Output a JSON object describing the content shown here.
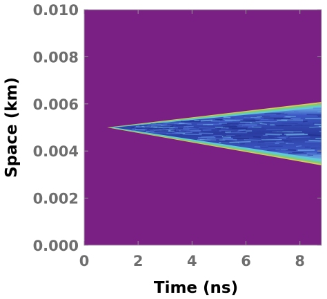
{
  "chart_data": {
    "type": "heatmap",
    "title": "",
    "xlabel": "Time (ns)",
    "ylabel": "Space (km)",
    "xlim": [
      0,
      8.8
    ],
    "ylim": [
      0,
      0.01
    ],
    "x_ticks": [
      "0",
      "2",
      "4",
      "6",
      "8"
    ],
    "y_ticks": [
      "0.000",
      "0.002",
      "0.004",
      "0.006",
      "0.008",
      "0.010"
    ],
    "background_color": "#7a1f84",
    "spread_region": {
      "apex": {
        "time": 0.9,
        "space": 0.005
      },
      "end": {
        "time": 8.8,
        "space_upper": 0.006,
        "space_lower": 0.0035
      }
    },
    "colors": {
      "background": "#7a1f84",
      "interior_dark": "#2a3ca0",
      "interior_mid": "#4b6dd6",
      "interior_light": "#6fb3e8",
      "edge_green": "#7dcc7a",
      "edge_yellow": "#d8c95a",
      "edge_cyan": "#5fc9d6"
    }
  }
}
